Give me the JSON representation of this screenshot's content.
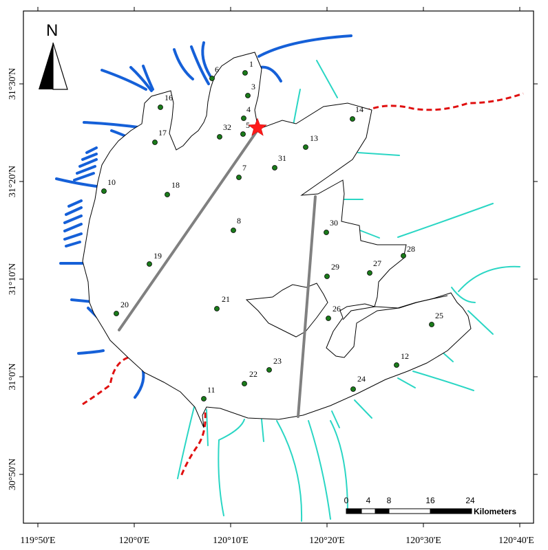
{
  "north_arrow": {
    "label": "N"
  },
  "axes": {
    "x_labels": [
      "119°50'E",
      "120°0'E",
      "120°10'E",
      "120°20'E",
      "120°30'E",
      "120°40'E"
    ],
    "y_labels": [
      "31°30'N",
      "31°20'N",
      "31°10'N",
      "31°0'N",
      "30°50'N"
    ]
  },
  "stations": [
    {
      "id": "1"
    },
    {
      "id": "3"
    },
    {
      "id": "4"
    },
    {
      "id": "5"
    },
    {
      "id": "6"
    },
    {
      "id": "7"
    },
    {
      "id": "8"
    },
    {
      "id": "10"
    },
    {
      "id": "11"
    },
    {
      "id": "12"
    },
    {
      "id": "13"
    },
    {
      "id": "14"
    },
    {
      "id": "16"
    },
    {
      "id": "17"
    },
    {
      "id": "18"
    },
    {
      "id": "19"
    },
    {
      "id": "20"
    },
    {
      "id": "21"
    },
    {
      "id": "22"
    },
    {
      "id": "23"
    },
    {
      "id": "24"
    },
    {
      "id": "25"
    },
    {
      "id": "26"
    },
    {
      "id": "27"
    },
    {
      "id": "28"
    },
    {
      "id": "29"
    },
    {
      "id": "30"
    },
    {
      "id": "31"
    },
    {
      "id": "32"
    }
  ],
  "scale_bar": {
    "ticks": [
      "0",
      "4",
      "8",
      "16",
      "24"
    ],
    "unit": "Kilometers"
  },
  "colors": {
    "inflow_rivers": "#1560d8",
    "outflow_rivers": "#2ad6c4",
    "boundary_dashed": "#e01010",
    "transects": "#808080",
    "stations": "#1a7a1a",
    "reference_star": "#ff1a1a"
  }
}
